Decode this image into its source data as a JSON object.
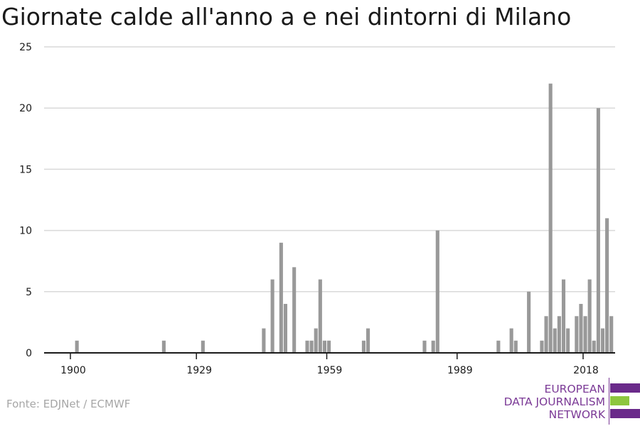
{
  "chart_data": {
    "type": "bar",
    "title": "Giornate calde all'anno a e nei dintorni di Milano",
    "xlabel": "",
    "ylabel": "",
    "x_range": [
      1900,
      2018
    ],
    "x_ticks": [
      1900,
      1929,
      1959,
      1989,
      2018
    ],
    "y_ticks": [
      0,
      5,
      10,
      15,
      20,
      25
    ],
    "ylim": [
      0,
      25
    ],
    "grid": true,
    "bar_color": "#999999",
    "gridline_color": "#d9d9d9",
    "axis_color": "#1a1a1a",
    "years": [
      1901,
      1921,
      1930,
      1944,
      1946,
      1948,
      1949,
      1951,
      1954,
      1955,
      1956,
      1957,
      1958,
      1959,
      1967,
      1968,
      1981,
      1983,
      1984,
      1998,
      2001,
      2002,
      2005,
      2008,
      2009,
      2010,
      2011,
      2012,
      2013,
      2014,
      2016,
      2017,
      2018,
      2019,
      2020,
      2021,
      2022,
      2023,
      2024
    ],
    "values": [
      1,
      1,
      1,
      2,
      6,
      9,
      4,
      7,
      1,
      1,
      2,
      6,
      1,
      1,
      1,
      2,
      1,
      1,
      10,
      1,
      2,
      1,
      5,
      1,
      3,
      22,
      2,
      3,
      6,
      2,
      3,
      4,
      3,
      6,
      1,
      20,
      2,
      11,
      3
    ]
  },
  "source": "Fonte: EDJNet / ECMWF",
  "logo": {
    "line1": "EUROPEAN",
    "line2": "DATA JOURNALISM",
    "line3": "NETWORK",
    "colors": {
      "purple": "#6a2a8a",
      "green": "#8dc63f",
      "text": "#7b3a96"
    }
  }
}
